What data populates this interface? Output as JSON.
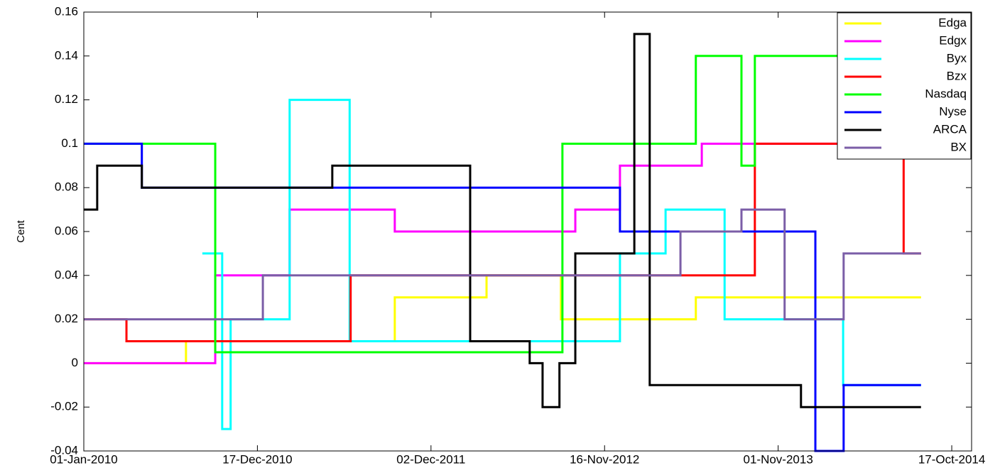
{
  "chart_data": {
    "type": "line",
    "step": true,
    "y_label": "Cent",
    "xlim": [
      "2010-01-01",
      "2014-11-26"
    ],
    "xticks": [
      {
        "value": "2010-01-01",
        "label": "01-Jan-2010"
      },
      {
        "value": "2010-12-17",
        "label": "17-Dec-2010"
      },
      {
        "value": "2011-12-02",
        "label": "02-Dec-2011"
      },
      {
        "value": "2012-11-16",
        "label": "16-Nov-2012"
      },
      {
        "value": "2013-11-01",
        "label": "01-Nov-2013"
      },
      {
        "value": "2014-10-17",
        "label": "17-Oct-2014"
      }
    ],
    "ylim": [
      -0.04,
      0.16
    ],
    "yticks": [
      -0.04,
      -0.02,
      0,
      0.02,
      0.04,
      0.06,
      0.08,
      0.1,
      0.12,
      0.14,
      0.16
    ],
    "legend": "top-right",
    "series": [
      {
        "name": "Edga",
        "color": "#ffff00",
        "x": [
          "2010-01-01",
          "2010-07-26",
          "2011-09-20",
          "2012-03-23",
          "2012-08-20",
          "2013-05-19",
          "2014-08-16"
        ],
        "values": [
          0,
          0.01,
          0.03,
          0.04,
          0.02,
          0.03,
          0.03
        ]
      },
      {
        "name": "Edgx",
        "color": "#ff00ff",
        "x": [
          "2010-01-01",
          "2010-09-23",
          "2011-02-20",
          "2011-09-20",
          "2012-09-18",
          "2012-12-17",
          "2013-05-31",
          "2014-08-16"
        ],
        "values": [
          0,
          0.04,
          0.07,
          0.06,
          0.07,
          0.09,
          0.1,
          0.1
        ]
      },
      {
        "name": "Byx",
        "color": "#00ffff",
        "x": [
          "2010-08-28",
          "2010-10-07",
          "2010-10-24",
          "2010-12-28",
          "2011-02-20",
          "2011-06-21",
          "2012-12-17",
          "2013-03-19",
          "2013-07-16",
          "2014-03-12",
          "2014-08-16"
        ],
        "values": [
          0.05,
          -0.03,
          0.02,
          0.02,
          0.12,
          0.01,
          0.05,
          0.07,
          0.02,
          -0.01,
          -0.01
        ]
      },
      {
        "name": "Bzx",
        "color": "#ff0000",
        "x": [
          "2010-01-01",
          "2010-03-28",
          "2011-06-23",
          "2013-09-15",
          "2014-07-12",
          "2014-08-16"
        ],
        "values": [
          0.02,
          0.01,
          0.04,
          0.1,
          0.05,
          0.05
        ]
      },
      {
        "name": "Nasdaq",
        "color": "#00ff00",
        "x": [
          "2010-01-01",
          "2010-09-23",
          "2012-08-23",
          "2013-05-19",
          "2013-08-19",
          "2013-09-15",
          "2014-08-16"
        ],
        "values": [
          0.1,
          0.005,
          0.1,
          0.14,
          0.09,
          0.14,
          0.14
        ]
      },
      {
        "name": "Nyse",
        "color": "#0000ff",
        "x": [
          "2010-01-01",
          "2010-04-28",
          "2012-12-17",
          "2014-01-15",
          "2014-03-13",
          "2014-08-16"
        ],
        "values": [
          0.1,
          0.08,
          0.06,
          -0.04,
          -0.01,
          -0.01
        ]
      },
      {
        "name": "ARCA",
        "color": "#000000",
        "x": [
          "2010-01-01",
          "2010-01-28",
          "2010-04-28",
          "2011-05-17",
          "2012-02-19",
          "2012-06-18",
          "2012-07-14",
          "2012-08-17",
          "2012-09-18",
          "2013-01-15",
          "2013-02-15",
          "2013-12-17",
          "2014-08-16"
        ],
        "values": [
          0.07,
          0.09,
          0.08,
          0.09,
          0.01,
          0,
          -0.02,
          0,
          0.05,
          0.15,
          -0.01,
          -0.02,
          -0.02
        ]
      },
      {
        "name": "BX",
        "color": "#7b5ea7",
        "x": [
          "2010-01-01",
          "2010-12-28",
          "2013-04-18",
          "2013-08-19",
          "2013-11-14",
          "2014-03-13",
          "2014-08-16"
        ],
        "values": [
          0.02,
          0.04,
          0.06,
          0.07,
          0.02,
          0.05,
          0.05
        ]
      }
    ]
  }
}
